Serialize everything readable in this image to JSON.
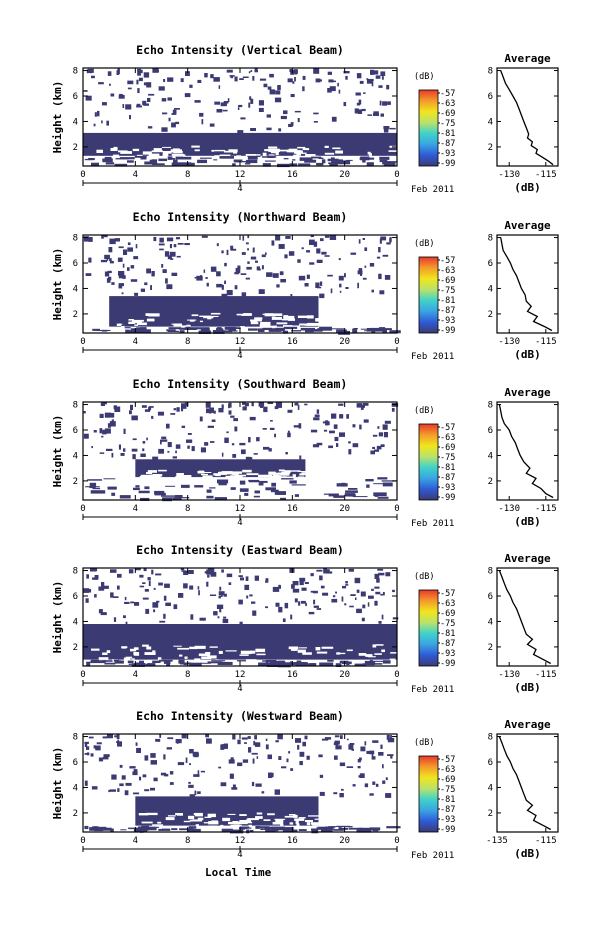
{
  "figure": {
    "xlabel": "Local Time",
    "date_label": "Feb 2011",
    "day_label": "4"
  },
  "chart_data": [
    {
      "type": "heatmap",
      "title": "Echo Intensity (Vertical Beam)",
      "ylabel": "Height (km)",
      "xticks": [
        "0",
        "4",
        "8",
        "12",
        "16",
        "20",
        "0"
      ],
      "yticks": [
        "2",
        "4",
        "6",
        "8"
      ],
      "xlim": [
        0,
        24
      ],
      "ylim": [
        0.5,
        8.2
      ],
      "colorbar": {
        "unit": "(dB)",
        "ticks": [
          "-57",
          "-63",
          "-69",
          "-75",
          "-81",
          "-87",
          "-93",
          "-99"
        ]
      },
      "dense_layer": {
        "x": [
          0,
          24
        ],
        "y": [
          1.3,
          3.1
        ],
        "value_db": -99
      },
      "sparse_echo": {
        "x": [
          0,
          24
        ],
        "y": [
          3.1,
          8.2
        ]
      },
      "profile": {
        "title": "Average",
        "xlabel": "(dB)",
        "xticks": [
          "-130",
          "-115"
        ],
        "yticks": [
          "2",
          "4",
          "6",
          "8"
        ],
        "xlim": [
          -135,
          -110
        ],
        "ylim": [
          0.5,
          8.2
        ],
        "height_km": [
          8.0,
          7.5,
          7.0,
          6.5,
          6.0,
          5.5,
          5.0,
          4.5,
          4.0,
          3.5,
          3.0,
          2.7,
          2.4,
          2.1,
          1.8,
          1.5,
          1.2,
          0.9,
          0.6
        ],
        "value_db": [
          -133.5,
          -132.5,
          -131.5,
          -130,
          -128.5,
          -127,
          -126,
          -125,
          -124,
          -123,
          -122,
          -122.5,
          -120.5,
          -121,
          -118.5,
          -119,
          -116.5,
          -114,
          -112
        ]
      }
    },
    {
      "type": "heatmap",
      "title": "Echo Intensity (Northward Beam)",
      "ylabel": "Height (km)",
      "xticks": [
        "0",
        "4",
        "8",
        "12",
        "16",
        "20",
        "0"
      ],
      "yticks": [
        "2",
        "4",
        "6",
        "8"
      ],
      "xlim": [
        0,
        24
      ],
      "ylim": [
        0.5,
        8.2
      ],
      "colorbar": {
        "unit": "(dB)",
        "ticks": [
          "-57",
          "-63",
          "-69",
          "-75",
          "-81",
          "-87",
          "-93",
          "-99"
        ]
      },
      "dense_layer": {
        "x": [
          2,
          18
        ],
        "y": [
          1.0,
          3.4
        ],
        "value_db": -99
      },
      "sparse_echo": {
        "x": [
          0,
          24
        ],
        "y": [
          3.4,
          8.2
        ]
      },
      "profile": {
        "title": "Average",
        "xlabel": "(dB)",
        "xticks": [
          "-130",
          "-115"
        ],
        "yticks": [
          "2",
          "4",
          "6",
          "8"
        ],
        "xlim": [
          -135,
          -110
        ],
        "ylim": [
          0.5,
          8.2
        ],
        "height_km": [
          8.0,
          7.5,
          7.0,
          6.5,
          6.0,
          5.5,
          5.0,
          4.5,
          4.0,
          3.5,
          3.0,
          2.6,
          2.2,
          1.8,
          1.4,
          1.0,
          0.7
        ],
        "value_db": [
          -133.5,
          -133,
          -132.5,
          -131,
          -129.5,
          -128.5,
          -127,
          -126,
          -125,
          -123.5,
          -123,
          -121,
          -122.5,
          -118.5,
          -120,
          -115.5,
          -112.5
        ]
      }
    },
    {
      "type": "heatmap",
      "title": "Echo Intensity (Southward Beam)",
      "ylabel": "Height (km)",
      "xticks": [
        "0",
        "4",
        "8",
        "12",
        "16",
        "20",
        "0"
      ],
      "yticks": [
        "2",
        "4",
        "6",
        "8"
      ],
      "xlim": [
        0,
        24
      ],
      "ylim": [
        0.5,
        8.2
      ],
      "colorbar": {
        "unit": "(dB)",
        "ticks": [
          "-57",
          "-63",
          "-69",
          "-75",
          "-81",
          "-87",
          "-93",
          "-99"
        ]
      },
      "dense_layer": {
        "x": [
          4,
          17
        ],
        "y": [
          2.3,
          3.7
        ],
        "value_db": -99
      },
      "sparse_echo": {
        "x": [
          0,
          24
        ],
        "y": [
          3.7,
          8.2
        ]
      },
      "profile": {
        "title": "Average",
        "xlabel": "(dB)",
        "xticks": [
          "-130",
          "-115"
        ],
        "yticks": [
          "2",
          "4",
          "6",
          "8"
        ],
        "xlim": [
          -135,
          -110
        ],
        "ylim": [
          0.5,
          8.2
        ],
        "height_km": [
          8.0,
          7.5,
          7.0,
          6.5,
          6.0,
          5.5,
          5.0,
          4.5,
          4.0,
          3.5,
          3.0,
          2.6,
          2.2,
          1.8,
          1.4,
          1.0,
          0.7
        ],
        "value_db": [
          -134,
          -133.5,
          -133,
          -132,
          -130,
          -129,
          -127.5,
          -126.5,
          -125.5,
          -124,
          -121.5,
          -123,
          -119,
          -120.5,
          -117,
          -115,
          -112
        ]
      }
    },
    {
      "type": "heatmap",
      "title": "Echo Intensity (Eastward Beam)",
      "ylabel": "Height (km)",
      "xticks": [
        "0",
        "4",
        "8",
        "12",
        "16",
        "20",
        "0"
      ],
      "yticks": [
        "2",
        "4",
        "6",
        "8"
      ],
      "xlim": [
        0,
        24
      ],
      "ylim": [
        0.5,
        8.2
      ],
      "colorbar": {
        "unit": "(dB)",
        "ticks": [
          "-57",
          "-63",
          "-69",
          "-75",
          "-81",
          "-87",
          "-93",
          "-99"
        ]
      },
      "dense_layer": {
        "x": [
          0,
          24
        ],
        "y": [
          1.0,
          3.8
        ],
        "value_db": -99
      },
      "sparse_echo": {
        "x": [
          0,
          24
        ],
        "y": [
          3.8,
          8.2
        ]
      },
      "profile": {
        "title": "Average",
        "xlabel": "(dB)",
        "xticks": [
          "-130",
          "-115"
        ],
        "yticks": [
          "2",
          "4",
          "6",
          "8"
        ],
        "xlim": [
          -135,
          -110
        ],
        "ylim": [
          0.5,
          8.2
        ],
        "height_km": [
          8.0,
          7.5,
          7.0,
          6.5,
          6.0,
          5.5,
          5.0,
          4.5,
          4.0,
          3.5,
          3.0,
          2.6,
          2.2,
          1.8,
          1.4,
          1.0,
          0.7
        ],
        "value_db": [
          -134,
          -133,
          -132,
          -131,
          -129.5,
          -128.5,
          -127,
          -126,
          -125,
          -124,
          -123,
          -120.5,
          -122.5,
          -119,
          -120,
          -116,
          -113
        ]
      }
    },
    {
      "type": "heatmap",
      "title": "Echo Intensity (Westward Beam)",
      "ylabel": "Height (km)",
      "xticks": [
        "0",
        "4",
        "8",
        "12",
        "16",
        "20",
        "0"
      ],
      "yticks": [
        "2",
        "4",
        "6",
        "8"
      ],
      "xlim": [
        0,
        24
      ],
      "ylim": [
        0.5,
        8.2
      ],
      "colorbar": {
        "unit": "(dB)",
        "ticks": [
          "-57",
          "-63",
          "-69",
          "-75",
          "-81",
          "-87",
          "-93",
          "-99"
        ]
      },
      "dense_layer": {
        "x": [
          4,
          18
        ],
        "y": [
          1.0,
          3.3
        ],
        "value_db": -99
      },
      "sparse_echo": {
        "x": [
          0,
          24
        ],
        "y": [
          3.3,
          8.2
        ]
      },
      "profile": {
        "title": "Average",
        "xlabel": "(dB)",
        "xticks": [
          "-135",
          "-115"
        ],
        "yticks": [
          "2",
          "4",
          "6",
          "8"
        ],
        "xlim": [
          -135,
          -110
        ],
        "ylim": [
          0.5,
          8.2
        ],
        "height_km": [
          8.0,
          7.5,
          7.0,
          6.5,
          6.0,
          5.5,
          5.0,
          4.5,
          4.0,
          3.5,
          3.0,
          2.6,
          2.2,
          1.8,
          1.4,
          1.0,
          0.7
        ],
        "value_db": [
          -134,
          -133,
          -132,
          -131,
          -129.5,
          -128.5,
          -127,
          -126,
          -125,
          -124,
          -123,
          -120.5,
          -122.5,
          -119,
          -120,
          -116,
          -113
        ]
      }
    }
  ],
  "colors": {
    "echo": "#3b3a73",
    "colorbar_stops": [
      "#e8392b",
      "#f39c2b",
      "#f1e51d",
      "#b9e26b",
      "#3fd3c9",
      "#3aa4e3",
      "#2e5bd6",
      "#3b3a73"
    ]
  }
}
